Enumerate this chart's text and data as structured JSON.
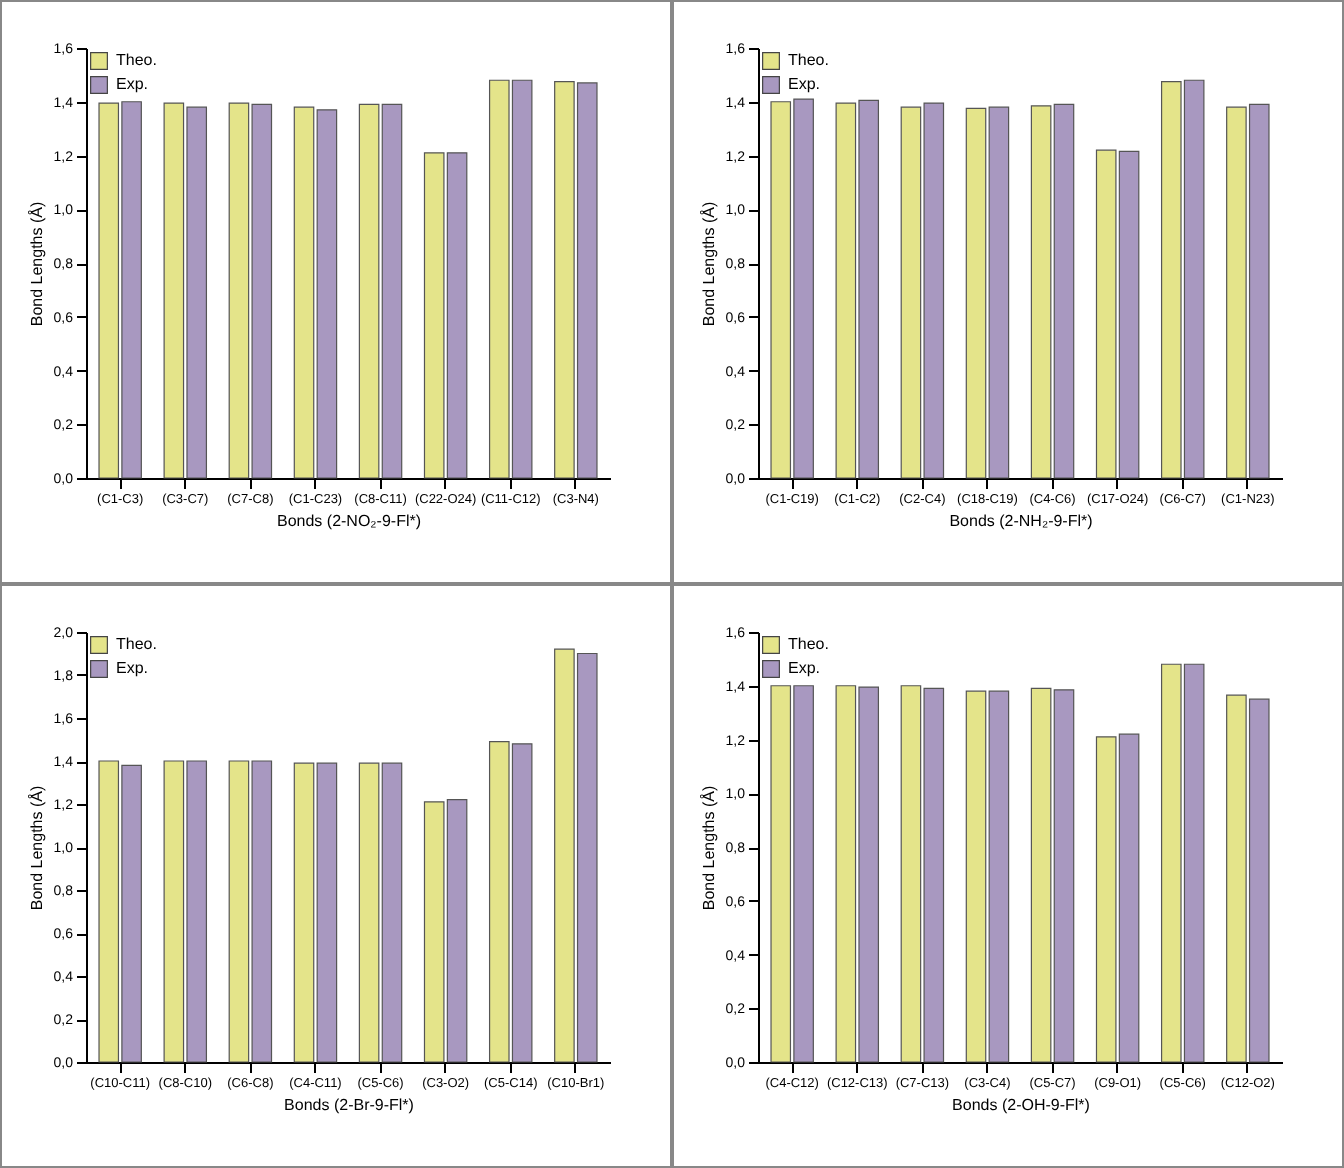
{
  "chart_data": [
    {
      "type": "bar",
      "xlabel": "Bonds (2-NO₂-9-Fl*)",
      "ylabel": "Bond Lengths (Å)",
      "legend": "top left",
      "categories": [
        "(C1-C3)",
        "(C3-C7)",
        "(C7-C8)",
        "(C1-C23)",
        "(C8-C11)",
        "(C22-O24)",
        "(C11-C12)",
        "(C3-N4)"
      ],
      "series": [
        {
          "name": "Theo.",
          "color": "#e4e48a",
          "values": [
            1.395,
            1.395,
            1.395,
            1.38,
            1.39,
            1.21,
            1.48,
            1.475
          ]
        },
        {
          "name": "Exp.",
          "color": "#a898c0",
          "values": [
            1.4,
            1.38,
            1.39,
            1.37,
            1.39,
            1.21,
            1.48,
            1.47
          ]
        }
      ],
      "ylim": [
        0,
        1.6
      ],
      "yticks": [
        {
          "value": 0,
          "label": "0,0"
        },
        {
          "value": 0.2,
          "label": "0,2"
        },
        {
          "value": 0.4,
          "label": "0,4"
        },
        {
          "value": 0.6,
          "label": "0,6"
        },
        {
          "value": 0.8,
          "label": "0,8"
        },
        {
          "value": 1.0,
          "label": "1,0"
        },
        {
          "value": 1.2,
          "label": "1,2"
        },
        {
          "value": 1.4,
          "label": "1,4"
        },
        {
          "value": 1.6,
          "label": "1,6"
        }
      ]
    },
    {
      "type": "bar",
      "xlabel": "Bonds (2-NH₂-9-Fl*)",
      "ylabel": "Bond Lengths (Å)",
      "legend": "top left",
      "categories": [
        "(C1-C19)",
        "(C1-C2)",
        "(C2-C4)",
        "(C18-C19)",
        "(C4-C6)",
        "(C17-O24)",
        "(C6-C7)",
        "(C1-N23)"
      ],
      "series": [
        {
          "name": "Theo.",
          "color": "#e4e48a",
          "values": [
            1.4,
            1.395,
            1.38,
            1.375,
            1.385,
            1.22,
            1.475,
            1.38
          ]
        },
        {
          "name": "Exp.",
          "color": "#a898c0",
          "values": [
            1.41,
            1.405,
            1.395,
            1.38,
            1.39,
            1.215,
            1.48,
            1.39
          ]
        }
      ],
      "ylim": [
        0,
        1.6
      ],
      "yticks": [
        {
          "value": 0,
          "label": "0,0"
        },
        {
          "value": 0.2,
          "label": "0,2"
        },
        {
          "value": 0.4,
          "label": "0,4"
        },
        {
          "value": 0.6,
          "label": "0,6"
        },
        {
          "value": 0.8,
          "label": "0,8"
        },
        {
          "value": 1.0,
          "label": "1,0"
        },
        {
          "value": 1.2,
          "label": "1,2"
        },
        {
          "value": 1.4,
          "label": "1,4"
        },
        {
          "value": 1.6,
          "label": "1,6"
        }
      ]
    },
    {
      "type": "bar",
      "xlabel": "Bonds (2-Br-9-Fl*)",
      "ylabel": "Bond Lengths (Å)",
      "legend": "top left",
      "categories": [
        "(C10-C11)",
        "(C8-C10)",
        "(C6-C8)",
        "(C4-C11)",
        "(C5-C6)",
        "(C3-O2)",
        "(C5-C14)",
        "(C10-Br1)"
      ],
      "series": [
        {
          "name": "Theo.",
          "color": "#e4e48a",
          "values": [
            1.4,
            1.4,
            1.4,
            1.39,
            1.39,
            1.21,
            1.49,
            1.92
          ]
        },
        {
          "name": "Exp.",
          "color": "#a898c0",
          "values": [
            1.38,
            1.4,
            1.4,
            1.39,
            1.39,
            1.22,
            1.48,
            1.9
          ]
        }
      ],
      "ylim": [
        0,
        2.0
      ],
      "yticks": [
        {
          "value": 0,
          "label": "0,0"
        },
        {
          "value": 0.2,
          "label": "0,2"
        },
        {
          "value": 0.4,
          "label": "0,4"
        },
        {
          "value": 0.6,
          "label": "0,6"
        },
        {
          "value": 0.8,
          "label": "0,8"
        },
        {
          "value": 1.0,
          "label": "1,0"
        },
        {
          "value": 1.2,
          "label": "1,2"
        },
        {
          "value": 1.4,
          "label": "1,4"
        },
        {
          "value": 1.6,
          "label": "1,6"
        },
        {
          "value": 1.8,
          "label": "1,8"
        },
        {
          "value": 2.0,
          "label": "2,0"
        }
      ]
    },
    {
      "type": "bar",
      "xlabel": "Bonds (2-OH-9-Fl*)",
      "ylabel": "Bond Lengths (Å)",
      "legend": "top left",
      "categories": [
        "(C4-C12)",
        "(C12-C13)",
        "(C7-C13)",
        "(C3-C4)",
        "(C5-C7)",
        "(C9-O1)",
        "(C5-C6)",
        "(C12-O2)"
      ],
      "series": [
        {
          "name": "Theo.",
          "color": "#e4e48a",
          "values": [
            1.4,
            1.4,
            1.4,
            1.38,
            1.39,
            1.21,
            1.48,
            1.365
          ]
        },
        {
          "name": "Exp.",
          "color": "#a898c0",
          "values": [
            1.4,
            1.395,
            1.39,
            1.38,
            1.385,
            1.22,
            1.48,
            1.35
          ]
        }
      ],
      "ylim": [
        0,
        1.6
      ],
      "yticks": [
        {
          "value": 0,
          "label": "0,0"
        },
        {
          "value": 0.2,
          "label": "0,2"
        },
        {
          "value": 0.4,
          "label": "0,4"
        },
        {
          "value": 0.6,
          "label": "0,6"
        },
        {
          "value": 0.8,
          "label": "0,8"
        },
        {
          "value": 1.0,
          "label": "1,0"
        },
        {
          "value": 1.2,
          "label": "1,2"
        },
        {
          "value": 1.4,
          "label": "1,4"
        },
        {
          "value": 1.6,
          "label": "1,6"
        }
      ]
    }
  ]
}
